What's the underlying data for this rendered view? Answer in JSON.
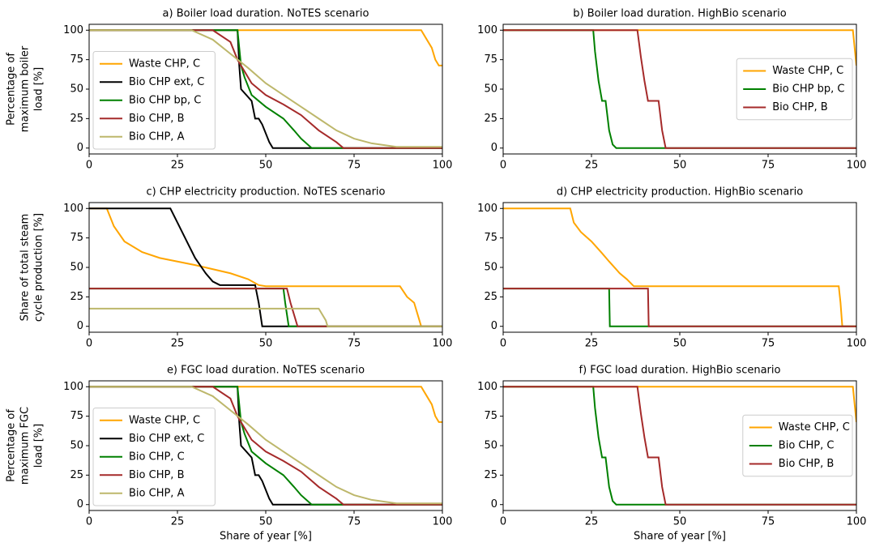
{
  "chart_data": [
    {
      "type": "line",
      "title": "a) Boiler load duration. NoTES scenario",
      "ylabel": [
        "Percentage of",
        "maximum boiler",
        "load [%]"
      ],
      "xlim": [
        0,
        100
      ],
      "ylim": [
        -5,
        105
      ],
      "xticks": [
        0,
        25,
        50,
        75,
        100
      ],
      "yticks": [
        0,
        25,
        50,
        75,
        100
      ],
      "legend": "lower left",
      "series": [
        {
          "name": "Waste CHP, C",
          "color": "#ffa500",
          "x": [
            0,
            94,
            95,
            97,
            98,
            99,
            100
          ],
          "values": [
            100,
            100,
            95,
            85,
            75,
            70,
            70
          ]
        },
        {
          "name": "Bio CHP ext, C",
          "color": "#000000",
          "x": [
            0,
            42,
            42.5,
            43,
            46,
            47,
            48,
            49,
            51,
            52,
            100
          ],
          "values": [
            100,
            100,
            70,
            50,
            40,
            25,
            25,
            20,
            5,
            0,
            0
          ]
        },
        {
          "name": "Bio CHP bp, C",
          "color": "#008000",
          "x": [
            0,
            42,
            42.5,
            43,
            44,
            46,
            48,
            50,
            55,
            58,
            60,
            63,
            100
          ],
          "values": [
            100,
            100,
            85,
            70,
            60,
            45,
            40,
            35,
            25,
            15,
            8,
            0,
            0
          ]
        },
        {
          "name": "Bio CHP, B",
          "color": "#a52a2a",
          "x": [
            0,
            35,
            40,
            42,
            44,
            46,
            50,
            55,
            60,
            65,
            70,
            72,
            100
          ],
          "values": [
            100,
            100,
            90,
            75,
            65,
            55,
            45,
            37,
            28,
            15,
            5,
            0,
            0
          ]
        },
        {
          "name": "Bio CHP, A",
          "color": "#bdb76b",
          "x": [
            0,
            29,
            35,
            40,
            45,
            50,
            55,
            60,
            65,
            70,
            75,
            80,
            87,
            100
          ],
          "values": [
            100,
            100,
            92,
            80,
            68,
            55,
            45,
            35,
            25,
            15,
            8,
            4,
            1,
            1
          ]
        }
      ]
    },
    {
      "type": "line",
      "title": "b) Boiler load duration. HighBio scenario",
      "xlim": [
        0,
        100
      ],
      "ylim": [
        -5,
        105
      ],
      "xticks": [
        0,
        25,
        50,
        75,
        100
      ],
      "yticks": [
        0,
        25,
        50,
        75,
        100
      ],
      "legend": "center right",
      "series": [
        {
          "name": "Waste CHP, C",
          "color": "#ffa500",
          "x": [
            0,
            99,
            100
          ],
          "values": [
            100,
            100,
            70
          ]
        },
        {
          "name": "Bio CHP bp, C",
          "color": "#008000",
          "x": [
            0,
            25.5,
            26,
            27,
            28,
            29,
            30,
            31,
            32,
            100
          ],
          "values": [
            100,
            100,
            82,
            57,
            40,
            40,
            15,
            3,
            0,
            0
          ]
        },
        {
          "name": "Bio CHP, B",
          "color": "#a52a2a",
          "x": [
            0,
            38,
            39,
            40,
            41,
            44,
            45,
            46,
            100
          ],
          "values": [
            100,
            100,
            77,
            57,
            40,
            40,
            15,
            0,
            0
          ]
        }
      ]
    },
    {
      "type": "line",
      "title": "c) CHP electricity production. NoTES scenario",
      "ylabel": [
        "Share of total steam",
        "cycle production [%]"
      ],
      "xlim": [
        0,
        100
      ],
      "ylim": [
        -5,
        105
      ],
      "xticks": [
        0,
        25,
        50,
        75,
        100
      ],
      "yticks": [
        0,
        25,
        50,
        75,
        100
      ],
      "series": [
        {
          "color": "#ffa500",
          "x": [
            0,
            5,
            7,
            10,
            15,
            20,
            30,
            40,
            45,
            48,
            50,
            88,
            90,
            92,
            94,
            100
          ],
          "values": [
            100,
            100,
            85,
            72,
            63,
            58,
            52,
            45,
            40,
            35,
            34,
            34,
            25,
            20,
            0,
            0
          ]
        },
        {
          "color": "#000000",
          "x": [
            0,
            23,
            25,
            28,
            30,
            33,
            35,
            37,
            40,
            47,
            48,
            49,
            100
          ],
          "values": [
            100,
            100,
            88,
            70,
            58,
            45,
            38,
            35,
            35,
            35,
            20,
            0,
            0
          ]
        },
        {
          "color": "#008000",
          "x": [
            0,
            55,
            55.5,
            56,
            56.5,
            100
          ],
          "values": [
            32,
            32,
            20,
            10,
            0,
            0
          ]
        },
        {
          "color": "#a52a2a",
          "x": [
            0,
            56,
            57,
            58,
            59,
            100
          ],
          "values": [
            32,
            32,
            20,
            10,
            0,
            0
          ]
        },
        {
          "color": "#bdb76b",
          "x": [
            0,
            65,
            67,
            67.5,
            100
          ],
          "values": [
            15,
            15,
            5,
            0,
            0
          ]
        }
      ]
    },
    {
      "type": "line",
      "title": "d) CHP electricity production. HighBio scenario",
      "xlim": [
        0,
        100
      ],
      "ylim": [
        -5,
        105
      ],
      "xticks": [
        0,
        25,
        50,
        75,
        100
      ],
      "yticks": [
        0,
        25,
        50,
        75,
        100
      ],
      "series": [
        {
          "color": "#ffa500",
          "x": [
            0,
            19,
            20,
            22,
            25,
            28,
            30,
            33,
            35,
            37,
            95,
            95.5,
            96,
            100
          ],
          "values": [
            100,
            100,
            88,
            80,
            72,
            62,
            55,
            45,
            40,
            34,
            34,
            20,
            0,
            0
          ]
        },
        {
          "color": "#008000",
          "x": [
            0,
            30,
            30.2,
            100
          ],
          "values": [
            32,
            32,
            0,
            0
          ]
        },
        {
          "color": "#a52a2a",
          "x": [
            0,
            41,
            41.2,
            100
          ],
          "values": [
            32,
            32,
            0,
            0
          ]
        }
      ]
    },
    {
      "type": "line",
      "title": "e) FGC load duration. NoTES scenario",
      "ylabel": [
        "Percentage of",
        "maximum  FGC",
        "load [%]"
      ],
      "xlabel": "Share of year [%]",
      "xlim": [
        0,
        100
      ],
      "ylim": [
        -5,
        105
      ],
      "xticks": [
        0,
        25,
        50,
        75,
        100
      ],
      "yticks": [
        0,
        25,
        50,
        75,
        100
      ],
      "legend": "lower left",
      "series": [
        {
          "name": "Waste CHP, C",
          "color": "#ffa500",
          "x": [
            0,
            94,
            95,
            97,
            98,
            99,
            100
          ],
          "values": [
            100,
            100,
            95,
            85,
            75,
            70,
            70
          ]
        },
        {
          "name": "Bio CHP ext, C",
          "color": "#000000",
          "x": [
            0,
            42,
            42.5,
            43,
            46,
            47,
            48,
            49,
            51,
            52,
            100
          ],
          "values": [
            100,
            100,
            70,
            50,
            40,
            25,
            25,
            20,
            5,
            0,
            0
          ]
        },
        {
          "name": "Bio CHP, C",
          "color": "#008000",
          "x": [
            0,
            42,
            42.5,
            43,
            44,
            46,
            48,
            50,
            55,
            58,
            60,
            63,
            100
          ],
          "values": [
            100,
            100,
            85,
            70,
            60,
            45,
            40,
            35,
            25,
            15,
            8,
            0,
            0
          ]
        },
        {
          "name": "Bio CHP, B",
          "color": "#a52a2a",
          "x": [
            0,
            35,
            40,
            42,
            44,
            46,
            50,
            55,
            60,
            65,
            70,
            72,
            100
          ],
          "values": [
            100,
            100,
            90,
            75,
            65,
            55,
            45,
            37,
            28,
            15,
            5,
            0,
            0
          ]
        },
        {
          "name": "Bio CHP, A",
          "color": "#bdb76b",
          "x": [
            0,
            29,
            35,
            40,
            45,
            50,
            55,
            60,
            65,
            70,
            75,
            80,
            87,
            100
          ],
          "values": [
            100,
            100,
            92,
            80,
            68,
            55,
            45,
            35,
            25,
            15,
            8,
            4,
            1,
            1
          ]
        }
      ]
    },
    {
      "type": "line",
      "title": "f) FGC load duration. HighBio scenario",
      "xlabel": "Share of year [%]",
      "xlim": [
        0,
        100
      ],
      "ylim": [
        -5,
        105
      ],
      "xticks": [
        0,
        25,
        50,
        75,
        100
      ],
      "yticks": [
        0,
        25,
        50,
        75,
        100
      ],
      "legend": "center right",
      "series": [
        {
          "name": "Waste CHP, C",
          "color": "#ffa500",
          "x": [
            0,
            99,
            100
          ],
          "values": [
            100,
            100,
            70
          ]
        },
        {
          "name": "Bio CHP, C",
          "color": "#008000",
          "x": [
            0,
            25.5,
            26,
            27,
            28,
            29,
            30,
            31,
            32,
            100
          ],
          "values": [
            100,
            100,
            82,
            57,
            40,
            40,
            15,
            3,
            0,
            0
          ]
        },
        {
          "name": "Bio CHP, B",
          "color": "#a52a2a",
          "x": [
            0,
            38,
            39,
            40,
            41,
            44,
            45,
            46,
            100
          ],
          "values": [
            100,
            100,
            77,
            57,
            40,
            40,
            15,
            0,
            0
          ]
        }
      ]
    }
  ]
}
